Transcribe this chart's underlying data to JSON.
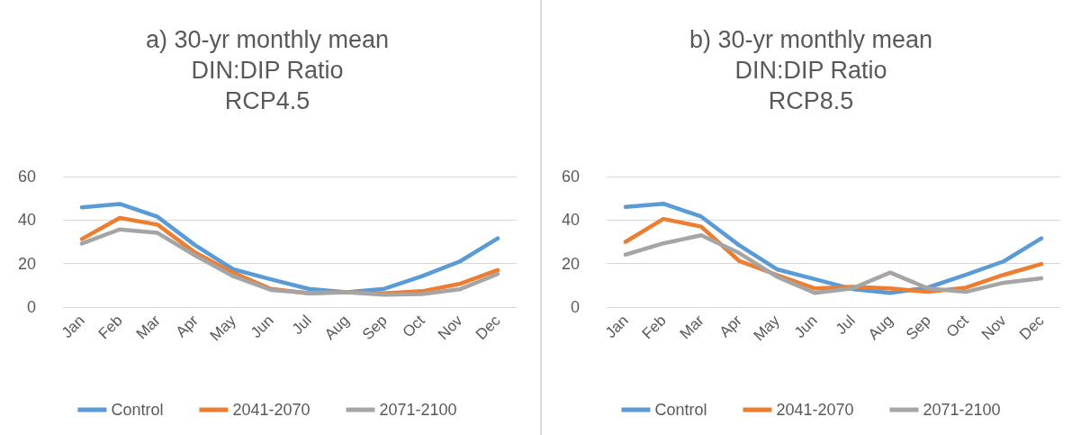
{
  "chart_data": [
    {
      "type": "line",
      "title": "a) 30-yr monthly mean\nDIN:DIP Ratio\nRCP4.5",
      "categories": [
        "Jan",
        "Feb",
        "Mar",
        "Apr",
        "May",
        "Jun",
        "Jul",
        "Aug",
        "Sep",
        "Oct",
        "Nov",
        "Dec"
      ],
      "series": [
        {
          "name": "Control",
          "color": "#5b9bd5",
          "values": [
            45.8,
            47.4,
            41.5,
            28.4,
            17.4,
            12.8,
            8.4,
            6.8,
            8.4,
            14.2,
            21,
            31.6
          ]
        },
        {
          "name": "2041-2070",
          "color": "#ed7d31",
          "values": [
            31.3,
            41,
            37.9,
            25,
            15.8,
            8.4,
            6.3,
            6.8,
            6.3,
            7.3,
            10.7,
            17
          ]
        },
        {
          "name": "2071-2100",
          "color": "#a5a5a5",
          "values": [
            29.2,
            35.7,
            34.1,
            23.7,
            14.2,
            7.9,
            6.5,
            6.8,
            5.7,
            6,
            8.2,
            15.2
          ]
        }
      ],
      "ylim": [
        0,
        60
      ],
      "yticks": [
        0,
        20,
        40,
        60
      ],
      "grid": "y",
      "legend": "bottom",
      "marker": "none",
      "line_style": "solid"
    },
    {
      "type": "line",
      "title": "b) 30-yr monthly mean\nDIN:DIP Ratio\nRCP8.5",
      "categories": [
        "Jan",
        "Feb",
        "Mar",
        "Apr",
        "May",
        "Jun",
        "Jul",
        "Aug",
        "Sep",
        "Oct",
        "Nov",
        "Dec"
      ],
      "series": [
        {
          "name": "Control",
          "color": "#5b9bd5",
          "values": [
            46,
            47.5,
            41.6,
            28.5,
            17.4,
            12.9,
            8.3,
            6.5,
            9,
            14.8,
            21,
            31.6
          ]
        },
        {
          "name": "2041-2070",
          "color": "#ed7d31",
          "values": [
            30,
            40.5,
            37,
            21.3,
            14.8,
            8.6,
            9.3,
            8.6,
            7,
            8.9,
            14.8,
            19.8
          ]
        },
        {
          "name": "2071-2100",
          "color": "#a5a5a5",
          "values": [
            24.1,
            29.3,
            33,
            24.9,
            14,
            6.5,
            8.6,
            15.9,
            8.6,
            7,
            11.2,
            13.2
          ]
        }
      ],
      "ylim": [
        0,
        60
      ],
      "yticks": [
        0,
        20,
        40,
        60
      ],
      "grid": "y",
      "legend": "bottom",
      "marker": "none",
      "line_style": "solid"
    }
  ]
}
